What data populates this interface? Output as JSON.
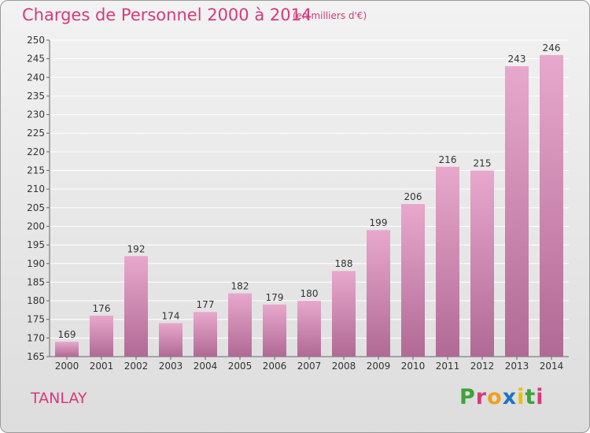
{
  "header": {
    "title": "Charges de Personnel 2000 à 2014",
    "unit": "(en milliers d'€)"
  },
  "footer": {
    "commune": "TANLAY",
    "logo": [
      "P",
      "r",
      "o",
      "x",
      "i",
      "t",
      "i"
    ]
  },
  "colors": {
    "title": "#d63a7c",
    "bar_top": "#e8a8cc",
    "bar_bottom": "#b06a95",
    "grid": "#ffffff",
    "axis": "#666666"
  },
  "logo_colors": [
    "#3fa23a",
    "#d63a7c",
    "#f0a020",
    "#1e73be",
    "#e8c000",
    "#3fa23a",
    "#d63a7c"
  ],
  "chart_data": {
    "type": "bar",
    "title": "Charges de Personnel 2000 à 2014",
    "subtitle": "(en milliers d'€)",
    "categories": [
      "2000",
      "2001",
      "2002",
      "2003",
      "2004",
      "2005",
      "2006",
      "2007",
      "2008",
      "2009",
      "2010",
      "2011",
      "2012",
      "2013",
      "2014"
    ],
    "values": [
      169,
      176,
      192,
      174,
      177,
      182,
      179,
      180,
      188,
      199,
      206,
      216,
      215,
      243,
      246
    ],
    "ylim": [
      165,
      250
    ],
    "yticks": [
      165,
      170,
      175,
      180,
      185,
      190,
      195,
      200,
      205,
      210,
      215,
      220,
      225,
      230,
      235,
      240,
      245,
      250
    ],
    "grid": true,
    "data_labels": true
  }
}
